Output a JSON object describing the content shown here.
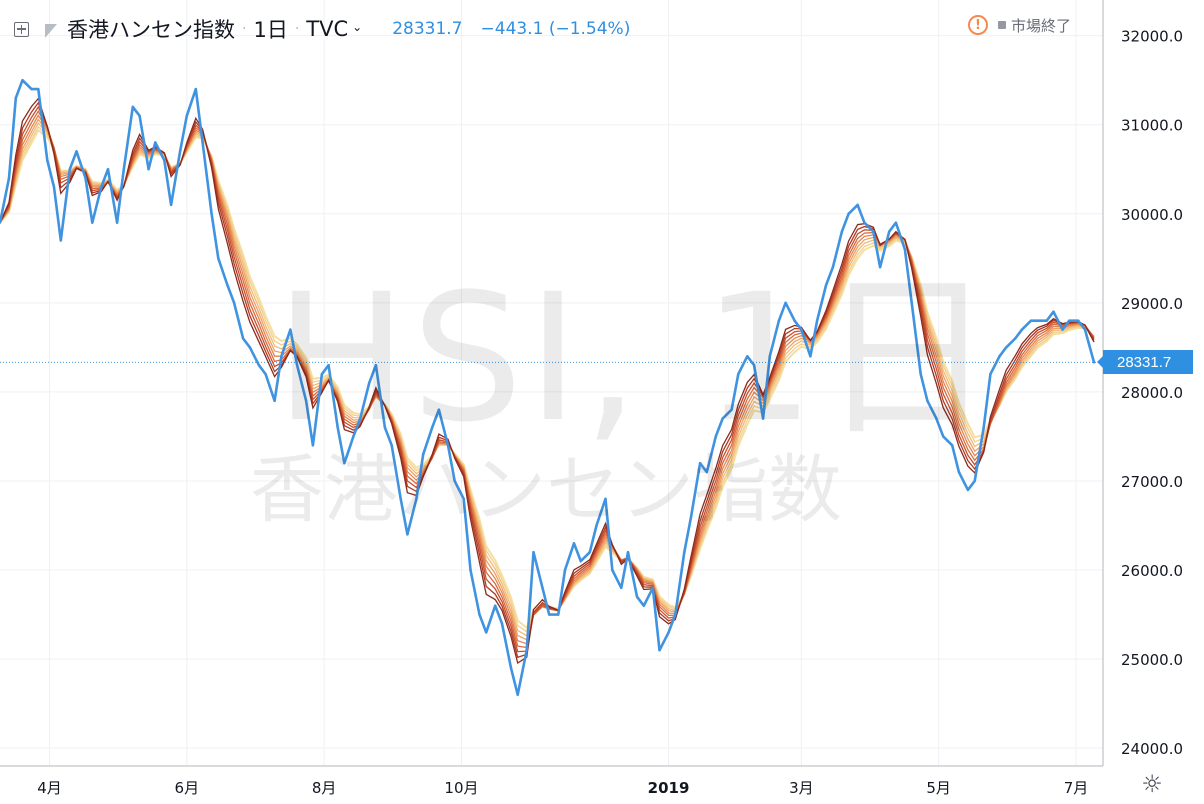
{
  "header": {
    "symbol_description": "香港ハンセン指数",
    "separator": "·",
    "interval": "1日",
    "exchange": "TVC",
    "exchange_chevron": "chevron-down-icon",
    "last_value": "28331.7",
    "change": "−443.1 (−1.54%)",
    "add_icon": "plus-square-icon",
    "flag_icon": "flag-icon"
  },
  "status": {
    "warning_icon": "exclamation-circle-icon",
    "warning_glyph": "!",
    "market_status": "市場終了"
  },
  "watermark": {
    "symbol": "HSI, 1日",
    "description": "香港ハンセン指数"
  },
  "price_tag": {
    "value": "28331.7"
  },
  "settings": {
    "icon": "gear-icon",
    "glyph": "☼"
  },
  "colors": {
    "price_line": "#3f93e0",
    "ribbon": [
      "#8b2a1c",
      "#b03a24",
      "#c8502e",
      "#da6a3d",
      "#e6864e",
      "#eda163",
      "#f1ba7a",
      "#f4cf8e",
      "#f5df9e"
    ],
    "axis_text": "#131722",
    "grid": "#eef0f3"
  },
  "chart_data": {
    "type": "line",
    "title": "香港ハンセン指数",
    "xlabel": "",
    "ylabel": "",
    "x_range": [
      "2018-03-10",
      "2019-07-13"
    ],
    "ylim": [
      23800,
      32400
    ],
    "y_ticks": [
      32000,
      31000,
      30000,
      29000,
      28000,
      27000,
      26000,
      25000,
      24000
    ],
    "y_tick_labels": [
      "32000.0",
      "31000.0",
      "30000.0",
      "29000.0",
      "28000.0",
      "27000.0",
      "26000.0",
      "25000.0",
      "24000.0"
    ],
    "x_ticks": [
      {
        "label": "4月",
        "date": "2018-04-01"
      },
      {
        "label": "6月",
        "date": "2018-06-01"
      },
      {
        "label": "8月",
        "date": "2018-08-01"
      },
      {
        "label": "10月",
        "date": "2018-10-01"
      },
      {
        "label": "2019",
        "date": "2019-01-01",
        "bold": true
      },
      {
        "label": "3月",
        "date": "2019-03-01"
      },
      {
        "label": "5月",
        "date": "2019-05-01"
      },
      {
        "label": "7月",
        "date": "2019-07-01"
      }
    ],
    "last_price": 28331.7,
    "grid": true,
    "legend": "top-left",
    "series": [
      {
        "name": "香港ハンセン指数",
        "x": [
          "2018-03-10",
          "2018-03-14",
          "2018-03-17",
          "2018-03-20",
          "2018-03-24",
          "2018-03-27",
          "2018-03-31",
          "2018-04-03",
          "2018-04-06",
          "2018-04-10",
          "2018-04-13",
          "2018-04-17",
          "2018-04-20",
          "2018-04-24",
          "2018-04-27",
          "2018-05-01",
          "2018-05-04",
          "2018-05-08",
          "2018-05-11",
          "2018-05-15",
          "2018-05-18",
          "2018-05-22",
          "2018-05-25",
          "2018-05-29",
          "2018-06-01",
          "2018-06-05",
          "2018-06-08",
          "2018-06-12",
          "2018-06-15",
          "2018-06-19",
          "2018-06-22",
          "2018-06-26",
          "2018-06-29",
          "2018-07-03",
          "2018-07-06",
          "2018-07-10",
          "2018-07-13",
          "2018-07-17",
          "2018-07-20",
          "2018-07-24",
          "2018-07-27",
          "2018-07-31",
          "2018-08-03",
          "2018-08-07",
          "2018-08-10",
          "2018-08-14",
          "2018-08-17",
          "2018-08-21",
          "2018-08-24",
          "2018-08-28",
          "2018-08-31",
          "2018-09-04",
          "2018-09-07",
          "2018-09-11",
          "2018-09-14",
          "2018-09-18",
          "2018-09-21",
          "2018-09-25",
          "2018-09-28",
          "2018-10-02",
          "2018-10-05",
          "2018-10-09",
          "2018-10-12",
          "2018-10-16",
          "2018-10-19",
          "2018-10-23",
          "2018-10-26",
          "2018-10-30",
          "2018-11-02",
          "2018-11-06",
          "2018-11-09",
          "2018-11-13",
          "2018-11-16",
          "2018-11-20",
          "2018-11-23",
          "2018-11-27",
          "2018-11-30",
          "2018-12-04",
          "2018-12-07",
          "2018-12-11",
          "2018-12-14",
          "2018-12-18",
          "2018-12-21",
          "2018-12-25",
          "2018-12-28",
          "2019-01-01",
          "2019-01-04",
          "2019-01-08",
          "2019-01-11",
          "2019-01-15",
          "2019-01-18",
          "2019-01-22",
          "2019-01-25",
          "2019-01-29",
          "2019-02-01",
          "2019-02-05",
          "2019-02-08",
          "2019-02-12",
          "2019-02-15",
          "2019-02-19",
          "2019-02-22",
          "2019-02-26",
          "2019-03-01",
          "2019-03-05",
          "2019-03-08",
          "2019-03-12",
          "2019-03-15",
          "2019-03-19",
          "2019-03-22",
          "2019-03-26",
          "2019-03-29",
          "2019-04-02",
          "2019-04-05",
          "2019-04-09",
          "2019-04-12",
          "2019-04-16",
          "2019-04-19",
          "2019-04-23",
          "2019-04-26",
          "2019-04-30",
          "2019-05-03",
          "2019-05-07",
          "2019-05-10",
          "2019-05-14",
          "2019-05-17",
          "2019-05-21",
          "2019-05-24",
          "2019-05-28",
          "2019-05-31",
          "2019-06-04",
          "2019-06-07",
          "2019-06-11",
          "2019-06-14",
          "2019-06-18",
          "2019-06-21",
          "2019-06-25",
          "2019-06-28",
          "2019-07-02",
          "2019-07-05",
          "2019-07-09"
        ],
        "values": [
          29900,
          30400,
          31300,
          31500,
          31400,
          31400,
          30600,
          30300,
          29700,
          30500,
          30700,
          30400,
          29900,
          30300,
          30500,
          29900,
          30500,
          31200,
          31100,
          30500,
          30800,
          30600,
          30100,
          30700,
          31100,
          31400,
          30800,
          30000,
          29500,
          29200,
          29000,
          28600,
          28500,
          28300,
          28200,
          27900,
          28400,
          28700,
          28300,
          27900,
          27400,
          28200,
          28300,
          27600,
          27200,
          27500,
          27700,
          28100,
          28300,
          27600,
          27400,
          26800,
          26400,
          26800,
          27300,
          27600,
          27800,
          27400,
          27000,
          26800,
          26000,
          25500,
          25300,
          25600,
          25400,
          24900,
          24600,
          25100,
          26200,
          25800,
          25500,
          25500,
          26000,
          26300,
          26100,
          26200,
          26500,
          26800,
          26000,
          25800,
          26200,
          25700,
          25600,
          25800,
          25100,
          25300,
          25500,
          26200,
          26600,
          27200,
          27100,
          27500,
          27700,
          27800,
          28200,
          28400,
          28300,
          27700,
          28400,
          28800,
          29000,
          28800,
          28700,
          28400,
          28800,
          29200,
          29400,
          29800,
          30000,
          30100,
          29900,
          29800,
          29400,
          29800,
          29900,
          29600,
          29000,
          28200,
          27900,
          27700,
          27500,
          27400,
          27100,
          26900,
          27000,
          27600,
          28200,
          28400,
          28500,
          28600,
          28700,
          28800,
          28800,
          28800,
          28900,
          28700,
          28800,
          28800,
          28700,
          28331.7
        ]
      }
    ]
  }
}
